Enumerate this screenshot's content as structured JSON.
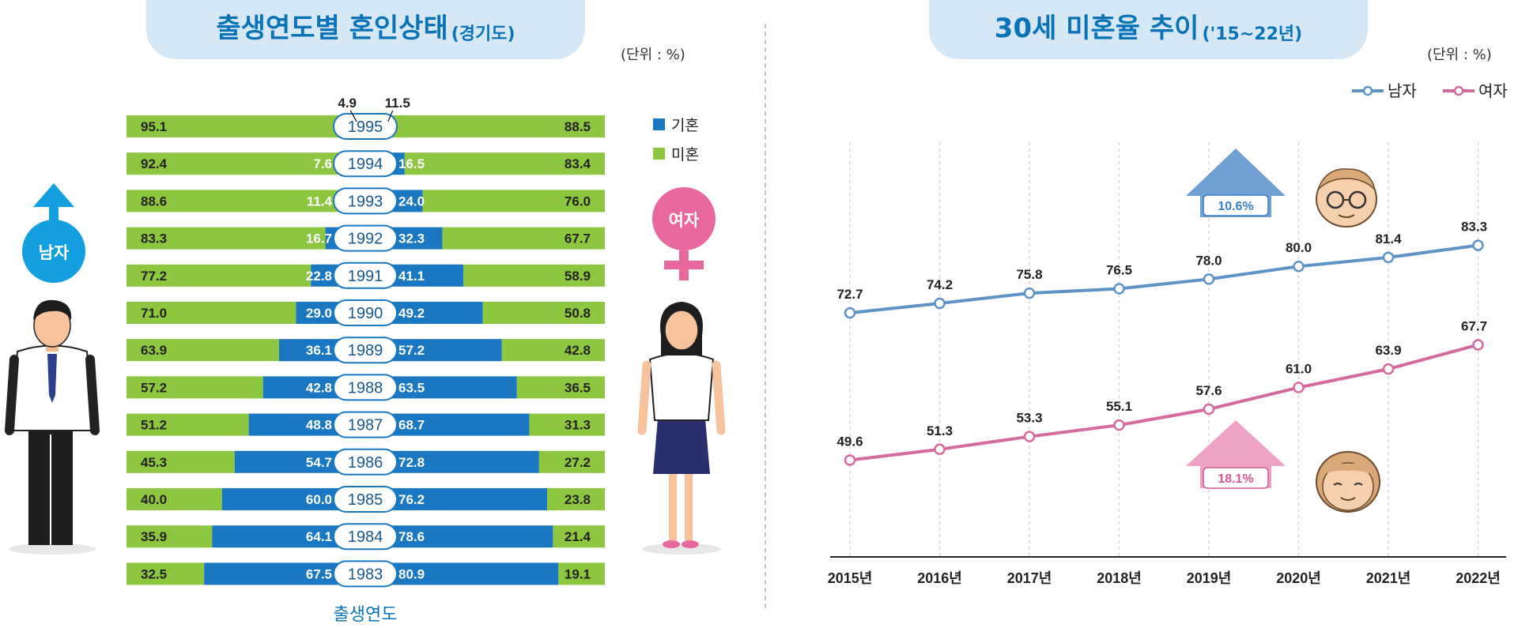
{
  "left": {
    "title": "출생연도별 혼인상태",
    "title_region": "(경기도)",
    "unit": "(단위 : %)",
    "legend": {
      "married": "기혼",
      "unmarried": "미혼"
    },
    "male_badge": "남자",
    "female_badge": "여자",
    "footer": "출생연도"
  },
  "right": {
    "title": "30세 미혼율 추이",
    "title_period": "('15~22년)",
    "unit": "(단위 : %)",
    "legend": {
      "male": "남자",
      "female": "여자"
    },
    "male_increase": "10.6%",
    "female_increase": "18.1%"
  },
  "colors": {
    "married": "#1a78c2",
    "unmarried": "#8dc63f",
    "male_line": "#5e93c8",
    "female_line": "#d56a9e",
    "title": "#0a73b8"
  },
  "chart_data": [
    {
      "type": "bar",
      "title": "출생연도별 혼인상태(경기도)",
      "xlabel": "출생연도",
      "unit": "%",
      "categories": [
        "1995",
        "1994",
        "1993",
        "1992",
        "1991",
        "1990",
        "1989",
        "1988",
        "1987",
        "1986",
        "1985",
        "1984",
        "1983"
      ],
      "male": {
        "unmarried": [
          95.1,
          92.4,
          88.6,
          83.3,
          77.2,
          71.0,
          63.9,
          57.2,
          51.2,
          45.3,
          40.0,
          35.9,
          32.5
        ],
        "married": [
          4.9,
          7.6,
          11.4,
          16.7,
          22.8,
          29.0,
          36.1,
          42.8,
          48.8,
          54.7,
          60.0,
          64.1,
          67.5
        ]
      },
      "female": {
        "married": [
          11.5,
          16.5,
          24.0,
          32.3,
          41.1,
          49.2,
          57.2,
          63.5,
          68.7,
          72.8,
          76.2,
          78.6,
          80.9
        ],
        "unmarried": [
          88.5,
          83.4,
          76.0,
          67.7,
          58.9,
          50.8,
          42.8,
          36.5,
          31.3,
          27.2,
          23.8,
          21.4,
          19.1
        ]
      },
      "series": [
        {
          "name": "기혼"
        },
        {
          "name": "미혼"
        }
      ]
    },
    {
      "type": "line",
      "title": "30세 미혼율 추이('15~22년)",
      "unit": "%",
      "categories": [
        "2015년",
        "2016년",
        "2017년",
        "2018년",
        "2019년",
        "2020년",
        "2021년",
        "2022년"
      ],
      "series": [
        {
          "name": "남자",
          "values": [
            72.7,
            74.2,
            75.8,
            76.5,
            78.0,
            80.0,
            81.4,
            83.3
          ]
        },
        {
          "name": "여자",
          "values": [
            49.6,
            51.3,
            53.3,
            55.1,
            57.6,
            61.0,
            63.9,
            67.7
          ]
        }
      ]
    }
  ]
}
